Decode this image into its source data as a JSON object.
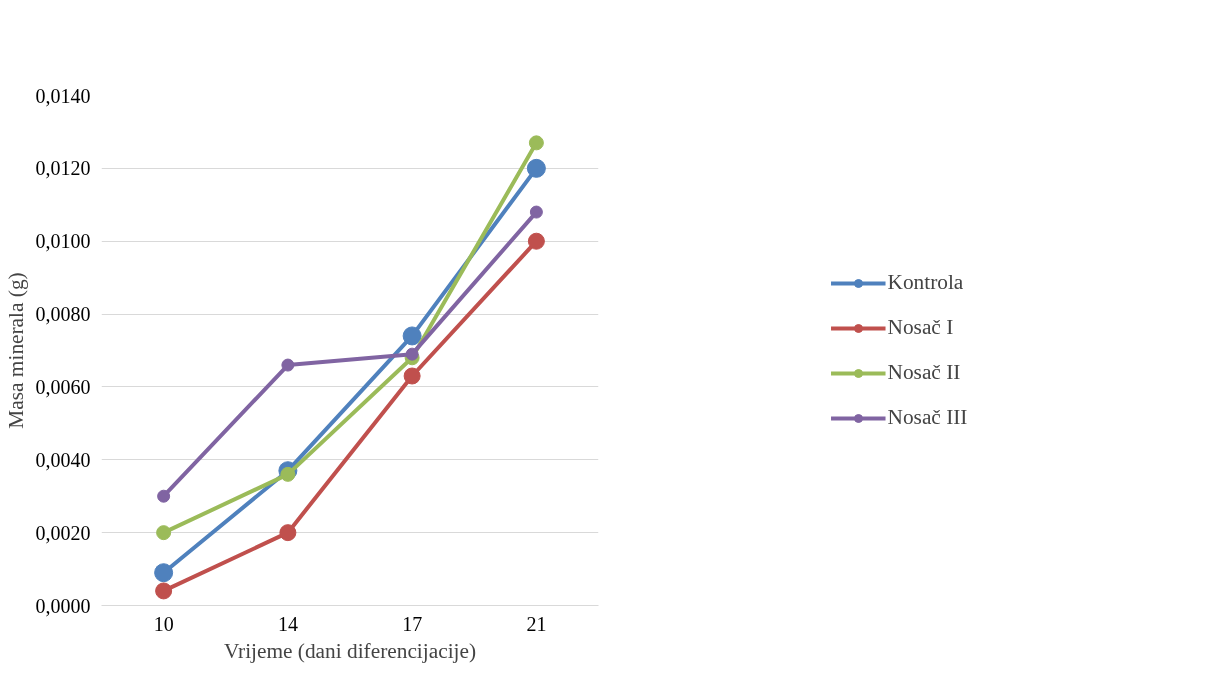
{
  "chart_data": {
    "type": "line",
    "xlabel": "Vrijeme (dani diferencijacije)",
    "ylabel": "Masa minerala (g)",
    "categories": [
      "10",
      "14",
      "17",
      "21"
    ],
    "series": [
      {
        "name": "Kontrola",
        "color": "#4f81bd",
        "values": [
          0.0009,
          0.0037,
          0.0074,
          0.012
        ]
      },
      {
        "name": "Nosač I",
        "color": "#c0504d",
        "values": [
          0.0004,
          0.002,
          0.0063,
          0.01
        ]
      },
      {
        "name": "Nosač II",
        "color": "#9bbb59",
        "values": [
          0.002,
          0.0036,
          0.0068,
          0.0127
        ]
      },
      {
        "name": "Nosač III",
        "color": "#8064a2",
        "values": [
          0.003,
          0.0066,
          0.0069,
          0.0108
        ]
      }
    ],
    "ylim": [
      0,
      0.014
    ],
    "yticks": [
      {
        "value": 0,
        "label": "0,0000"
      },
      {
        "value": 0.002,
        "label": "0,0020"
      },
      {
        "value": 0.004,
        "label": "0,0040"
      },
      {
        "value": 0.006,
        "label": "0,0060"
      },
      {
        "value": 0.008,
        "label": "0,0080"
      },
      {
        "value": 0.01,
        "label": "0,0100"
      },
      {
        "value": 0.012,
        "label": "0,0120"
      },
      {
        "value": 0.014,
        "label": "0,0140"
      }
    ],
    "grid": "y",
    "legend": "right",
    "marker": "circle",
    "line_style": "solid"
  }
}
